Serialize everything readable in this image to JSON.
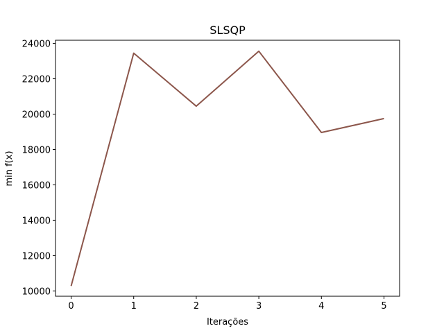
{
  "chart_data": {
    "type": "line",
    "title": "SLSQP",
    "xlabel": "Iterações",
    "ylabel": "min f(x)",
    "x": [
      0,
      1,
      2,
      3,
      4,
      5
    ],
    "xticks": [
      "0",
      "1",
      "2",
      "3",
      "4",
      "5"
    ],
    "yticks": [
      "10000",
      "12000",
      "14000",
      "16000",
      "18000",
      "20000",
      "22000",
      "24000"
    ],
    "xlim": [
      -0.25,
      5.25
    ],
    "ylim": [
      9700,
      24180
    ],
    "grid": false,
    "series": [
      {
        "values": [
          10280,
          23450,
          20450,
          23560,
          18960,
          19750
        ],
        "color": "#8c564b"
      }
    ]
  }
}
